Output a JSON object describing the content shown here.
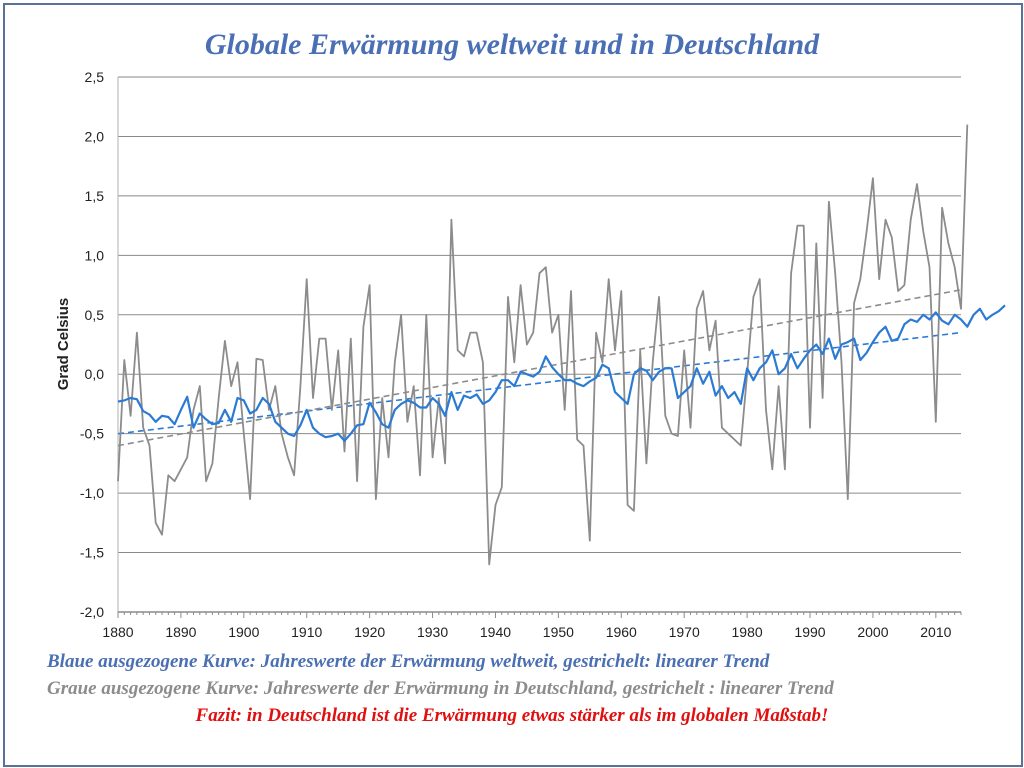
{
  "colors": {
    "frame": "#5a7296",
    "title": "#4a6fb4",
    "global_series": "#2b7bd4",
    "germany_series": "#8c8c8c",
    "global_trend": "#2b7bd4",
    "germany_trend": "#8c8c8c",
    "grid": "#8a8a8a",
    "caption_blue": "#4a6fb4",
    "caption_gray": "#8c8c8c",
    "caption_red": "#e01010"
  },
  "captions": {
    "blue": "Blaue ausgezogene Kurve: Jahreswerte der  Erwärmung weltweit, gestrichelt: linearer Trend",
    "gray": "Graue ausgezogene Kurve: Jahreswerte der Erwärmung in Deutschland, gestrichelt : linearer Trend",
    "red": "Fazit: in Deutschland ist die Erwärmung etwas stärker als im globalen Maßstab!"
  },
  "chart_data": {
    "type": "line",
    "title": "Globale Erwärmung weltweit und in Deutschland",
    "xlabel": "",
    "ylabel": "Grad Celsius",
    "xlim": [
      1880,
      2014
    ],
    "ylim": [
      -2.0,
      2.5
    ],
    "x_ticks": [
      "1880",
      "1890",
      "1900",
      "1910",
      "1920",
      "1930",
      "1940",
      "1950",
      "1960",
      "1970",
      "1980",
      "1990",
      "2000",
      "2010"
    ],
    "y_ticks": [
      "2,5",
      "2,0",
      "1,5",
      "1,0",
      "0,5",
      "0,0",
      "-0,5",
      "-1,0",
      "-1,5",
      "-2,0"
    ],
    "grid": "horizontal",
    "legend": "none",
    "x_start": 1880,
    "series": [
      {
        "style": "solid",
        "values": [
          -0.23,
          -0.22,
          -0.2,
          -0.21,
          -0.31,
          -0.34,
          -0.4,
          -0.35,
          -0.36,
          -0.42,
          -0.3,
          -0.19,
          -0.45,
          -0.33,
          -0.38,
          -0.42,
          -0.41,
          -0.3,
          -0.4,
          -0.2,
          -0.22,
          -0.33,
          -0.3,
          -0.2,
          -0.25,
          -0.4,
          -0.45,
          -0.5,
          -0.52,
          -0.43,
          -0.3,
          -0.45,
          -0.5,
          -0.53,
          -0.52,
          -0.5,
          -0.56,
          -0.5,
          -0.43,
          -0.42,
          -0.24,
          -0.32,
          -0.42,
          -0.45,
          -0.3,
          -0.25,
          -0.22,
          -0.24,
          -0.28,
          -0.28,
          -0.2,
          -0.25,
          -0.35,
          -0.15,
          -0.3,
          -0.18,
          -0.2,
          -0.17,
          -0.25,
          -0.22,
          -0.15,
          -0.05,
          -0.05,
          -0.1,
          0.02,
          0.0,
          -0.02,
          0.02,
          0.15,
          0.06,
          0.0,
          -0.05,
          -0.05,
          -0.08,
          -0.1,
          -0.06,
          -0.03,
          0.08,
          0.05,
          -0.15,
          -0.2,
          -0.25,
          0.0,
          0.05,
          0.03,
          -0.05,
          0.02,
          0.05,
          0.05,
          -0.2,
          -0.15,
          -0.1,
          0.05,
          -0.08,
          0.02,
          -0.18,
          -0.1,
          -0.2,
          -0.15,
          -0.25,
          0.05,
          -0.05,
          0.05,
          0.1,
          0.2,
          0.0,
          0.05,
          0.17,
          0.05,
          0.13,
          0.2,
          0.25,
          0.17,
          0.3,
          0.13,
          0.25,
          0.27,
          0.3,
          0.12,
          0.18,
          0.27,
          0.35,
          0.4,
          0.28,
          0.3,
          0.42,
          0.46,
          0.44,
          0.5,
          0.46,
          0.52,
          0.45,
          0.42,
          0.5,
          0.46,
          0.4,
          0.5,
          0.55,
          0.46,
          0.5,
          0.53,
          0.58
        ]
      },
      {
        "style": "solid",
        "values": [
          -0.9,
          0.12,
          -0.35,
          0.35,
          -0.45,
          -0.6,
          -1.25,
          -1.35,
          -0.85,
          -0.9,
          -0.8,
          -0.7,
          -0.3,
          -0.1,
          -0.9,
          -0.75,
          -0.2,
          0.28,
          -0.1,
          0.1,
          -0.5,
          -1.05,
          0.13,
          0.12,
          -0.3,
          -0.1,
          -0.5,
          -0.7,
          -0.85,
          -0.1,
          0.8,
          -0.2,
          0.3,
          0.3,
          -0.3,
          0.2,
          -0.65,
          0.3,
          -0.9,
          0.4,
          0.75,
          -1.05,
          -0.2,
          -0.7,
          0.1,
          0.5,
          -0.4,
          -0.1,
          -0.85,
          0.5,
          -0.7,
          -0.2,
          -0.75,
          1.3,
          0.2,
          0.15,
          0.35,
          0.35,
          0.1,
          -1.6,
          -1.1,
          -0.95,
          0.65,
          0.1,
          0.75,
          0.25,
          0.35,
          0.85,
          0.9,
          0.35,
          0.5,
          -0.3,
          0.7,
          -0.55,
          -0.6,
          -1.4,
          0.35,
          0.1,
          0.8,
          0.2,
          0.7,
          -1.1,
          -1.15,
          0.2,
          -0.75,
          0.1,
          0.65,
          -0.35,
          -0.5,
          -0.52,
          0.2,
          -0.45,
          0.55,
          0.7,
          0.2,
          0.45,
          -0.45,
          -0.5,
          -0.55,
          -0.6,
          0.0,
          0.65,
          0.8,
          -0.3,
          -0.8,
          -0.1,
          -0.8,
          0.85,
          1.25,
          1.25,
          -0.45,
          1.1,
          -0.2,
          1.45,
          0.85,
          0.1,
          -1.05,
          0.6,
          0.8,
          1.2,
          1.65,
          0.8,
          1.3,
          1.15,
          0.7,
          0.75,
          1.3,
          1.6,
          1.2,
          0.9,
          -0.4,
          1.4,
          1.1,
          0.9,
          0.55,
          2.1
        ]
      },
      {
        "style": "dashed",
        "trend": true,
        "x": [
          1880,
          2014
        ],
        "values": [
          -0.5,
          0.35
        ]
      },
      {
        "style": "dashed",
        "trend": true,
        "x": [
          1880,
          2014
        ],
        "values": [
          -0.6,
          0.71
        ]
      }
    ]
  }
}
